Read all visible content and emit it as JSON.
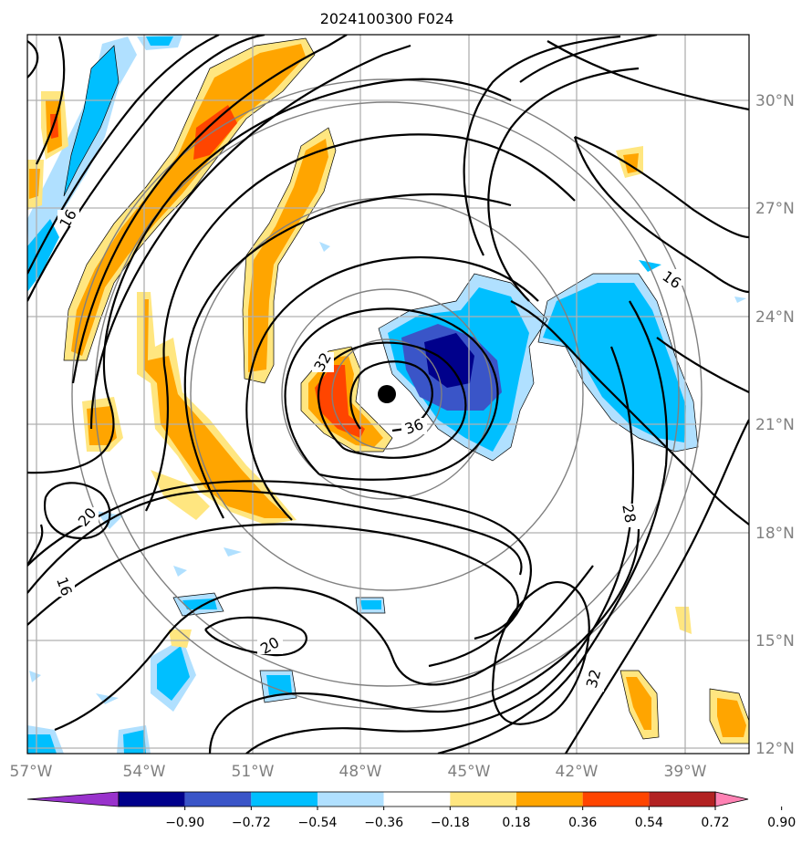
{
  "title": "2024100300 F024",
  "longitude_labels": [
    "57°W",
    "54°W",
    "51°W",
    "48°W",
    "45°W",
    "42°W",
    "39°W"
  ],
  "latitude_labels": [
    "30°N",
    "27°N",
    "24°N",
    "21°N",
    "18°N",
    "15°N",
    "12°N"
  ],
  "contour_labels": [
    "16",
    "16",
    "20",
    "16",
    "20",
    "32",
    "36",
    "28",
    "32"
  ],
  "colorbar": {
    "ticks": [
      "−0.90",
      "−0.72",
      "−0.54",
      "−0.36",
      "−0.18",
      "0.18",
      "0.36",
      "0.54",
      "0.72",
      "0.90"
    ],
    "colors": [
      "#9932cc",
      "#00008b",
      "#3a55c8",
      "#00bfff",
      "#b0e0ff",
      "#ffffff",
      "#ffe680",
      "#ffa500",
      "#ff4500",
      "#b22222",
      "#ff82b4"
    ]
  },
  "shading_colors": {
    "light_blue": "#b0e0ff",
    "blue": "#00bfff",
    "royal_blue": "#3a55c8",
    "navy": "#00008b",
    "light_yellow": "#ffe680",
    "orange": "#ffa500",
    "orange_red": "#ff4500"
  },
  "storm_center_marker": "black-dot"
}
